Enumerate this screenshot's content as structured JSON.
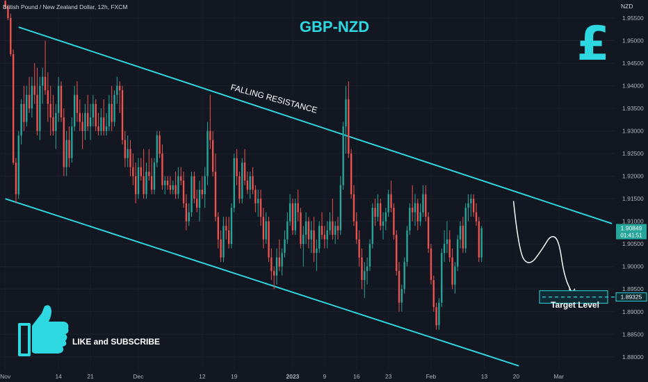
{
  "header": {
    "symbol_description": "British Pound / New Zealand Dollar, 12h, FXCM",
    "currency": "NZD"
  },
  "colors": {
    "background": "#131722",
    "up": "#26a69a",
    "down": "#ef5350",
    "channel": "#2ed8e0",
    "title": "#2ed8e0",
    "current_price_bg": "#26a69a",
    "target_bg": "#0f2a33"
  },
  "chart_data": {
    "type": "candlestick",
    "title": "GBP-NZD",
    "y_axis": {
      "range": [
        1.8772,
        1.959
      ],
      "ticks": [
        "1.95500",
        "1.95000",
        "1.94500",
        "1.94000",
        "1.93500",
        "1.93000",
        "1.92500",
        "1.92000",
        "1.91500",
        "1.91000",
        "1.90500",
        "1.90000",
        "1.89500",
        "1.89000",
        "1.88500",
        "1.88000"
      ]
    },
    "x_axis": {
      "ticks": [
        {
          "label": "Nov",
          "bold": false,
          "candle": 0
        },
        {
          "label": "14",
          "bold": false,
          "candle": 20
        },
        {
          "label": "21",
          "bold": false,
          "candle": 32
        },
        {
          "label": "Dec",
          "bold": false,
          "candle": 50
        },
        {
          "label": "12",
          "bold": false,
          "candle": 74
        },
        {
          "label": "19",
          "bold": false,
          "candle": 86
        },
        {
          "label": "2023",
          "bold": true,
          "candle": 108
        },
        {
          "label": "9",
          "bold": false,
          "candle": 120
        },
        {
          "label": "16",
          "bold": false,
          "candle": 132
        },
        {
          "label": "23",
          "bold": false,
          "candle": 144
        },
        {
          "label": "Feb",
          "bold": false,
          "candle": 160
        },
        {
          "label": "13",
          "bold": false,
          "candle": 180
        },
        {
          "label": "20",
          "bold": false,
          "candle": 192
        },
        {
          "label": "Mar",
          "bold": false,
          "candle": 208
        }
      ]
    },
    "candles": [
      [
        1.9588,
        1.959,
        1.957,
        1.9575
      ],
      [
        1.9575,
        1.958,
        1.9545,
        1.955
      ],
      [
        1.955,
        1.956,
        1.9465,
        1.947
      ],
      [
        1.947,
        1.948,
        1.9225,
        1.923
      ],
      [
        1.923,
        1.924,
        1.914,
        1.916
      ],
      [
        1.916,
        1.93,
        1.915,
        1.929
      ],
      [
        1.929,
        1.937,
        1.927,
        1.936
      ],
      [
        1.936,
        1.94,
        1.93,
        1.932
      ],
      [
        1.932,
        1.94,
        1.931,
        1.938
      ],
      [
        1.938,
        1.942,
        1.934,
        1.935
      ],
      [
        1.935,
        1.942,
        1.933,
        1.94
      ],
      [
        1.94,
        1.945,
        1.936,
        1.938
      ],
      [
        1.938,
        1.944,
        1.929,
        1.93
      ],
      [
        1.93,
        1.942,
        1.928,
        1.94
      ],
      [
        1.94,
        1.944,
        1.936,
        1.942
      ],
      [
        1.942,
        1.95,
        1.938,
        1.939
      ],
      [
        1.939,
        1.943,
        1.932,
        1.936
      ],
      [
        1.936,
        1.94,
        1.929,
        1.933
      ],
      [
        1.933,
        1.938,
        1.929,
        1.93
      ],
      [
        1.93,
        1.936,
        1.926,
        1.934
      ],
      [
        1.934,
        1.942,
        1.932,
        1.94
      ],
      [
        1.94,
        1.941,
        1.932,
        1.933
      ],
      [
        1.933,
        1.935,
        1.92,
        1.922
      ],
      [
        1.922,
        1.93,
        1.92,
        1.928
      ],
      [
        1.928,
        1.931,
        1.922,
        1.924
      ],
      [
        1.924,
        1.933,
        1.923,
        1.931
      ],
      [
        1.931,
        1.94,
        1.93,
        1.938
      ],
      [
        1.938,
        1.941,
        1.932,
        1.934
      ],
      [
        1.934,
        1.937,
        1.93,
        1.932
      ],
      [
        1.932,
        1.934,
        1.926,
        1.93
      ],
      [
        1.93,
        1.936,
        1.928,
        1.934
      ],
      [
        1.934,
        1.938,
        1.93,
        1.931
      ],
      [
        1.931,
        1.936,
        1.928,
        1.933
      ],
      [
        1.933,
        1.938,
        1.931,
        1.936
      ],
      [
        1.936,
        1.937,
        1.93,
        1.931
      ],
      [
        1.931,
        1.934,
        1.929,
        1.93
      ],
      [
        1.93,
        1.935,
        1.929,
        1.933
      ],
      [
        1.933,
        1.937,
        1.929,
        1.93
      ],
      [
        1.93,
        1.934,
        1.929,
        1.931
      ],
      [
        1.931,
        1.938,
        1.93,
        1.936
      ],
      [
        1.936,
        1.94,
        1.93,
        1.932
      ],
      [
        1.932,
        1.939,
        1.931,
        1.938
      ],
      [
        1.938,
        1.942,
        1.936,
        1.94
      ],
      [
        1.94,
        1.941,
        1.934,
        1.939
      ],
      [
        1.939,
        1.94,
        1.927,
        1.928
      ],
      [
        1.928,
        1.93,
        1.922,
        1.924
      ],
      [
        1.924,
        1.929,
        1.922,
        1.926
      ],
      [
        1.926,
        1.928,
        1.92,
        1.922
      ],
      [
        1.922,
        1.925,
        1.918,
        1.92
      ],
      [
        1.92,
        1.923,
        1.914,
        1.916
      ],
      [
        1.916,
        1.924,
        1.915,
        1.922
      ],
      [
        1.922,
        1.924,
        1.919,
        1.92
      ],
      [
        1.92,
        1.926,
        1.915,
        1.916
      ],
      [
        1.916,
        1.923,
        1.915,
        1.921
      ],
      [
        1.921,
        1.926,
        1.919,
        1.92
      ],
      [
        1.92,
        1.924,
        1.916,
        1.917
      ],
      [
        1.917,
        1.924,
        1.916,
        1.923
      ],
      [
        1.923,
        1.93,
        1.922,
        1.929
      ],
      [
        1.929,
        1.93,
        1.924,
        1.925
      ],
      [
        1.925,
        1.927,
        1.917,
        1.918
      ],
      [
        1.918,
        1.92,
        1.916,
        1.919
      ],
      [
        1.919,
        1.92,
        1.917,
        1.918
      ],
      [
        1.918,
        1.92,
        1.916,
        1.917
      ],
      [
        1.917,
        1.919,
        1.916,
        1.918
      ],
      [
        1.918,
        1.921,
        1.915,
        1.916
      ],
      [
        1.916,
        1.922,
        1.915,
        1.92
      ],
      [
        1.92,
        1.922,
        1.918,
        1.919
      ],
      [
        1.919,
        1.921,
        1.913,
        1.914
      ],
      [
        1.914,
        1.916,
        1.908,
        1.91
      ],
      [
        1.91,
        1.914,
        1.909,
        1.912
      ],
      [
        1.912,
        1.921,
        1.911,
        1.92
      ],
      [
        1.92,
        1.921,
        1.914,
        1.915
      ],
      [
        1.915,
        1.917,
        1.912,
        1.913
      ],
      [
        1.913,
        1.919,
        1.91,
        1.917
      ],
      [
        1.917,
        1.92,
        1.915,
        1.916
      ],
      [
        1.916,
        1.922,
        1.913,
        1.92
      ],
      [
        1.92,
        1.932,
        1.918,
        1.93
      ],
      [
        1.93,
        1.938,
        1.926,
        1.928
      ],
      [
        1.928,
        1.93,
        1.92,
        1.921
      ],
      [
        1.921,
        1.925,
        1.91,
        1.911
      ],
      [
        1.911,
        1.912,
        1.904,
        1.906
      ],
      [
        1.906,
        1.908,
        1.901,
        1.902
      ],
      [
        1.902,
        1.911,
        1.901,
        1.909
      ],
      [
        1.909,
        1.911,
        1.906,
        1.908
      ],
      [
        1.908,
        1.911,
        1.904,
        1.905
      ],
      [
        1.905,
        1.914,
        1.904,
        1.913
      ],
      [
        1.913,
        1.925,
        1.912,
        1.924
      ],
      [
        1.924,
        1.926,
        1.918,
        1.92
      ],
      [
        1.92,
        1.921,
        1.914,
        1.915
      ],
      [
        1.915,
        1.924,
        1.914,
        1.923
      ],
      [
        1.923,
        1.926,
        1.918,
        1.919
      ],
      [
        1.919,
        1.921,
        1.916,
        1.917
      ],
      [
        1.917,
        1.921,
        1.915,
        1.92
      ],
      [
        1.92,
        1.922,
        1.916,
        1.917
      ],
      [
        1.917,
        1.918,
        1.912,
        1.914
      ],
      [
        1.914,
        1.917,
        1.911,
        1.915
      ],
      [
        1.915,
        1.917,
        1.909,
        1.911
      ],
      [
        1.911,
        1.913,
        1.904,
        1.906
      ],
      [
        1.906,
        1.912,
        1.905,
        1.91
      ],
      [
        1.91,
        1.911,
        1.901,
        1.902
      ],
      [
        1.902,
        1.904,
        1.897,
        1.899
      ],
      [
        1.899,
        1.9,
        1.895,
        1.898
      ],
      [
        1.898,
        1.904,
        1.896,
        1.902
      ],
      [
        1.902,
        1.906,
        1.899,
        1.9
      ],
      [
        1.9,
        1.904,
        1.898,
        1.903
      ],
      [
        1.903,
        1.908,
        1.902,
        1.906
      ],
      [
        1.906,
        1.912,
        1.905,
        1.91
      ],
      [
        1.91,
        1.916,
        1.909,
        1.914
      ],
      [
        1.914,
        1.915,
        1.907,
        1.908
      ],
      [
        1.908,
        1.915,
        1.907,
        1.914
      ],
      [
        1.914,
        1.917,
        1.91,
        1.912
      ],
      [
        1.912,
        1.913,
        1.904,
        1.905
      ],
      [
        1.905,
        1.909,
        1.9,
        1.907
      ],
      [
        1.907,
        1.912,
        1.905,
        1.91
      ],
      [
        1.91,
        1.911,
        1.904,
        1.906
      ],
      [
        1.906,
        1.91,
        1.903,
        1.908
      ],
      [
        1.908,
        1.911,
        1.901,
        1.903
      ],
      [
        1.903,
        1.906,
        1.899,
        1.904
      ],
      [
        1.904,
        1.91,
        1.903,
        1.909
      ],
      [
        1.909,
        1.912,
        1.906,
        1.907
      ],
      [
        1.907,
        1.909,
        1.904,
        1.906
      ],
      [
        1.906,
        1.91,
        1.904,
        1.908
      ],
      [
        1.908,
        1.912,
        1.907,
        1.91
      ],
      [
        1.91,
        1.915,
        1.906,
        1.907
      ],
      [
        1.907,
        1.91,
        1.905,
        1.909
      ],
      [
        1.909,
        1.911,
        1.906,
        1.908
      ],
      [
        1.908,
        1.92,
        1.907,
        1.918
      ],
      [
        1.918,
        1.932,
        1.917,
        1.931
      ],
      [
        1.931,
        1.94,
        1.925,
        1.937
      ],
      [
        1.937,
        1.941,
        1.924,
        1.925
      ],
      [
        1.925,
        1.926,
        1.915,
        1.916
      ],
      [
        1.916,
        1.918,
        1.909,
        1.91
      ],
      [
        1.91,
        1.912,
        1.905,
        1.906
      ],
      [
        1.906,
        1.908,
        1.9,
        1.902
      ],
      [
        1.902,
        1.904,
        1.895,
        1.897
      ],
      [
        1.897,
        1.901,
        1.893,
        1.899
      ],
      [
        1.899,
        1.902,
        1.896,
        1.9
      ],
      [
        1.9,
        1.906,
        1.899,
        1.905
      ],
      [
        1.905,
        1.914,
        1.904,
        1.913
      ],
      [
        1.913,
        1.915,
        1.909,
        1.911
      ],
      [
        1.911,
        1.916,
        1.91,
        1.914
      ],
      [
        1.914,
        1.915,
        1.908,
        1.909
      ],
      [
        1.909,
        1.912,
        1.906,
        1.91
      ],
      [
        1.91,
        1.913,
        1.908,
        1.912
      ],
      [
        1.912,
        1.917,
        1.911,
        1.916
      ],
      [
        1.916,
        1.919,
        1.912,
        1.913
      ],
      [
        1.913,
        1.914,
        1.906,
        1.907
      ],
      [
        1.907,
        1.908,
        1.898,
        1.899
      ],
      [
        1.899,
        1.901,
        1.89,
        1.892
      ],
      [
        1.892,
        1.896,
        1.89,
        1.895
      ],
      [
        1.895,
        1.902,
        1.894,
        1.901
      ],
      [
        1.901,
        1.909,
        1.9,
        1.908
      ],
      [
        1.908,
        1.914,
        1.907,
        1.913
      ],
      [
        1.913,
        1.918,
        1.91,
        1.912
      ],
      [
        1.912,
        1.916,
        1.909,
        1.914
      ],
      [
        1.914,
        1.915,
        1.908,
        1.91
      ],
      [
        1.91,
        1.914,
        1.909,
        1.912
      ],
      [
        1.912,
        1.918,
        1.911,
        1.916
      ],
      [
        1.916,
        1.918,
        1.91,
        1.911
      ],
      [
        1.911,
        1.912,
        1.903,
        1.904
      ],
      [
        1.904,
        1.905,
        1.896,
        1.897
      ],
      [
        1.897,
        1.898,
        1.89,
        1.891
      ],
      [
        1.891,
        1.892,
        1.886,
        1.887
      ],
      [
        1.887,
        1.893,
        1.886,
        1.892
      ],
      [
        1.892,
        1.904,
        1.891,
        1.903
      ],
      [
        1.903,
        1.908,
        1.901,
        1.905
      ],
      [
        1.905,
        1.91,
        1.903,
        1.906
      ],
      [
        1.906,
        1.908,
        1.901,
        1.902
      ],
      [
        1.902,
        1.904,
        1.895,
        1.896
      ],
      [
        1.896,
        1.901,
        1.894,
        1.9
      ],
      [
        1.9,
        1.907,
        1.899,
        1.906
      ],
      [
        1.906,
        1.91,
        1.904,
        1.909
      ],
      [
        1.909,
        1.911,
        1.903,
        1.904
      ],
      [
        1.904,
        1.914,
        1.903,
        1.913
      ],
      [
        1.913,
        1.916,
        1.91,
        1.914
      ],
      [
        1.914,
        1.916,
        1.911,
        1.915
      ],
      [
        1.915,
        1.916,
        1.911,
        1.912
      ],
      [
        1.912,
        1.914,
        1.909,
        1.91
      ],
      [
        1.91,
        1.911,
        1.901,
        1.902
      ],
      [
        1.902,
        1.909,
        1.901,
        1.9085
      ]
    ],
    "x_range": [
      -2,
      229
    ],
    "lines": [
      {
        "name": "falling-resistance",
        "x1": 5,
        "y1": 1.953,
        "x2": 228,
        "y2": 1.9095
      },
      {
        "name": "falling-support",
        "x1": 0,
        "y1": 1.915,
        "x2": 193,
        "y2": 1.878
      }
    ],
    "annotations": {
      "pair_title": "GBP-NZD",
      "resistance_label": "FALLING RESISTANCE",
      "target_label": "Target Level",
      "cta": "LIKE and SUBSCRIBE"
    },
    "current_price": {
      "value": "1.90849",
      "countdown": "01:41:51",
      "level": 1.90849
    },
    "target_price": {
      "value": "1.89325",
      "level": 1.89325
    },
    "projection": [
      [
        191,
        1.9145
      ],
      [
        193,
        1.903
      ],
      [
        197,
        1.9
      ],
      [
        202,
        1.904
      ],
      [
        205,
        1.907
      ],
      [
        208,
        1.906
      ],
      [
        210,
        1.898
      ],
      [
        213,
        1.894
      ]
    ]
  }
}
